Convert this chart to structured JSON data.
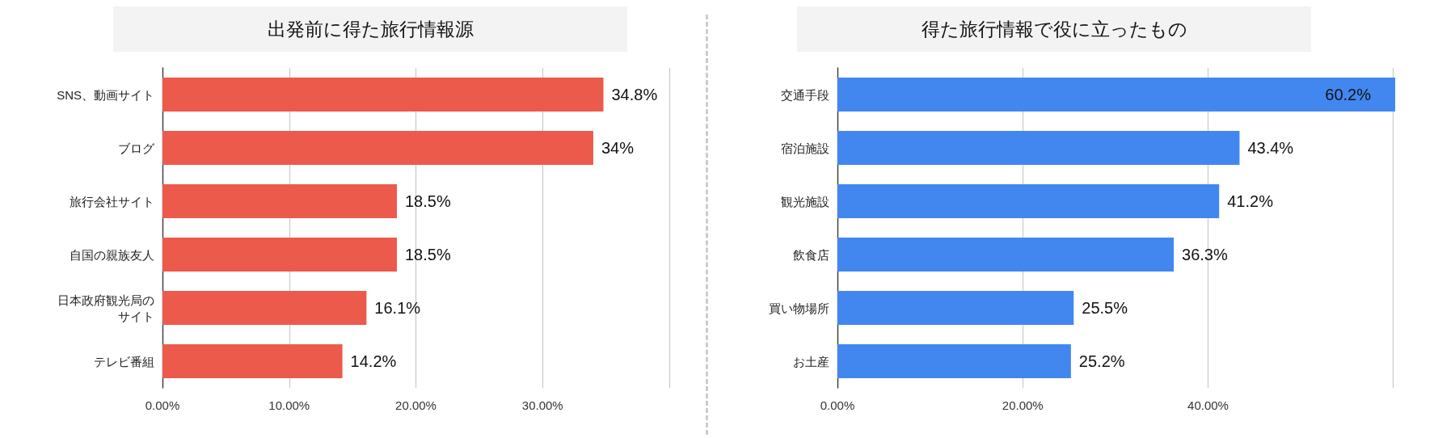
{
  "chart_data": [
    {
      "type": "bar",
      "orientation": "horizontal",
      "title": "出発前に得た旅行情報源",
      "categories": [
        "SNS、動画サイト",
        "ブログ",
        "旅行会社サイト",
        "自国の親族友人",
        "日本政府観光局のサイト",
        "テレビ番組"
      ],
      "values": [
        34.8,
        34,
        18.5,
        18.5,
        16.1,
        14.2
      ],
      "color": "#eb5a4b",
      "value_labels": [
        "34.8%",
        "34%",
        "18.5%",
        "18.5%",
        "16.1%",
        "14.2%"
      ],
      "xlim": [
        0,
        40
      ],
      "xticks": [
        {
          "value": 0,
          "label": "0.00%"
        },
        {
          "value": 10,
          "label": "10.00%"
        },
        {
          "value": 20,
          "label": "20.00%"
        },
        {
          "value": 30,
          "label": "30.00%"
        },
        {
          "value": 40,
          "label": null
        }
      ],
      "grid": "x"
    },
    {
      "type": "bar",
      "orientation": "horizontal",
      "title": "得た旅行情報で役に立ったもの",
      "categories": [
        "交通手段",
        "宿泊施設",
        "観光施設",
        "飲食店",
        "買い物場所",
        "お土産"
      ],
      "values": [
        60.2,
        43.4,
        41.2,
        36.3,
        25.5,
        25.2
      ],
      "color": "#4287f0",
      "value_labels": [
        "60.2%",
        "43.4%",
        "41.2%",
        "36.3%",
        "25.5%",
        "25.2%"
      ],
      "xlim": [
        0,
        60.2
      ],
      "xticks": [
        {
          "value": 0,
          "label": "0.00%"
        },
        {
          "value": 20,
          "label": "20.00%"
        },
        {
          "value": 40,
          "label": "40.00%"
        },
        {
          "value": 60,
          "label": null
        }
      ],
      "grid": "x"
    }
  ]
}
